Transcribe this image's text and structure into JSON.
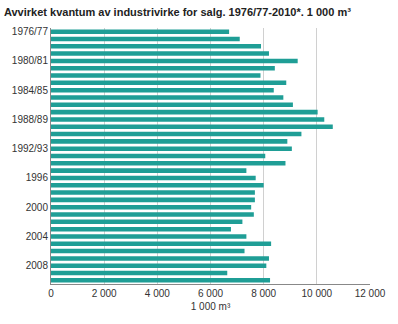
{
  "chart_data": {
    "type": "bar",
    "orientation": "horizontal",
    "title": "Avvirket kvantum av industrivirke for salg. 1976/77-2010*. 1 000 m³",
    "x_label": "1 000 m³",
    "categories": [
      "1976/77",
      null,
      null,
      null,
      "1980/81",
      null,
      null,
      null,
      "1984/85",
      null,
      null,
      null,
      "1988/89",
      null,
      null,
      null,
      "1992/93",
      null,
      null,
      null,
      "1996",
      null,
      null,
      null,
      "2000",
      null,
      null,
      null,
      "2004",
      null,
      null,
      null,
      "2008",
      null,
      null
    ],
    "values": [
      6700,
      7100,
      7900,
      8200,
      9280,
      8420,
      7880,
      8850,
      8380,
      8740,
      9100,
      10030,
      10280,
      10600,
      9420,
      8890,
      9060,
      8060,
      8820,
      7350,
      7700,
      8000,
      7670,
      7670,
      7530,
      7630,
      7200,
      6770,
      7350,
      8280,
      7280,
      8200,
      8100,
      6630,
      8240
    ],
    "color": "#1f9e96",
    "xlim": [
      0,
      12000
    ],
    "xticks": [
      0,
      {
        "value": 2000,
        "label": "2 000"
      },
      {
        "value": 4000,
        "label": "4 000"
      },
      {
        "value": 6000,
        "label": "6 000"
      },
      {
        "value": 8000,
        "label": "8 000"
      },
      {
        "value": 10000,
        "label": "10 000"
      },
      {
        "value": 12000,
        "label": "12 000"
      }
    ],
    "grid": true
  }
}
